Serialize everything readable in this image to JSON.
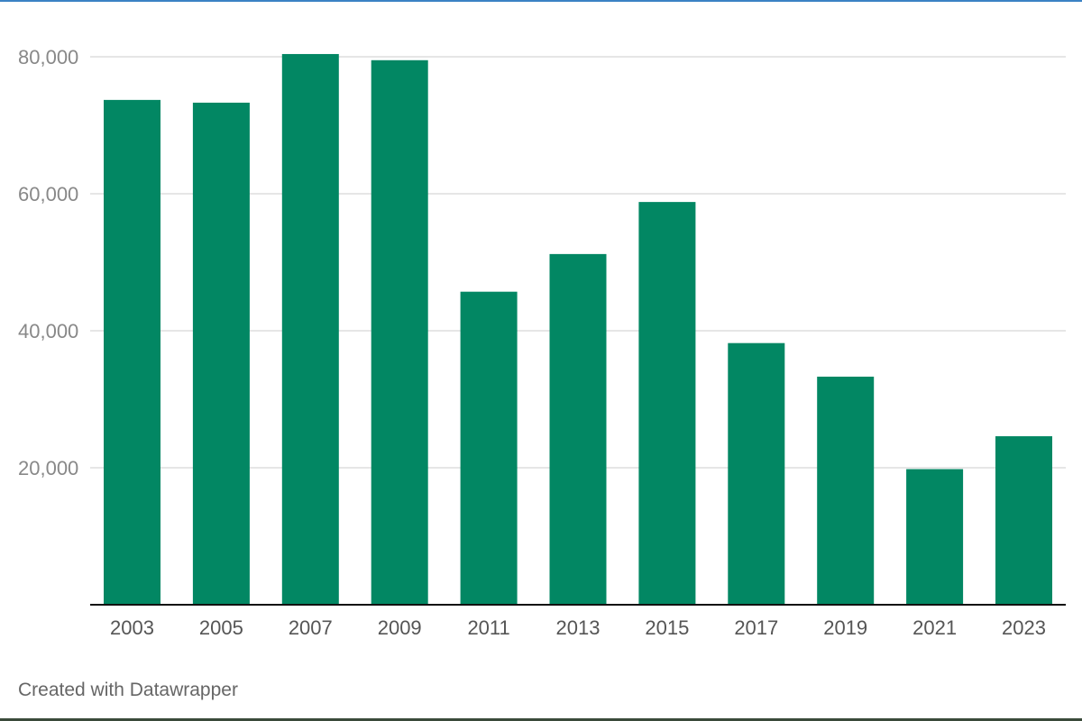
{
  "chart_data": {
    "type": "bar",
    "categories": [
      "2003",
      "2005",
      "2007",
      "2009",
      "2011",
      "2013",
      "2015",
      "2017",
      "2019",
      "2021",
      "2023"
    ],
    "values": [
      73700,
      73300,
      80400,
      79500,
      45700,
      51200,
      58800,
      38200,
      33300,
      19800,
      24600
    ],
    "title": "",
    "xlabel": "",
    "ylabel": "",
    "ylim": [
      0,
      80000
    ],
    "yticks": [
      20000,
      40000,
      60000,
      80000
    ],
    "ytick_labels": [
      "20,000",
      "40,000",
      "60,000",
      "80,000"
    ],
    "grid": true,
    "bar_color": "#028763"
  },
  "footer": {
    "credit": "Created with Datawrapper"
  },
  "colors": {
    "bar": "#028763",
    "gridline": "#dddddd",
    "axis": "#111111",
    "tick_label": "#888888",
    "category_label": "#555555"
  }
}
